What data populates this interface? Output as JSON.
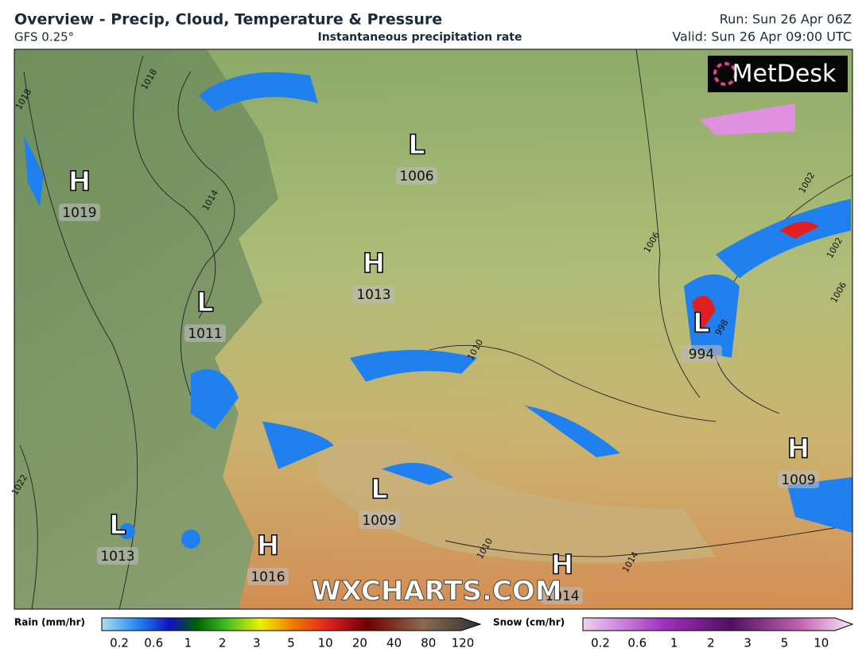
{
  "header": {
    "title": "Overview - Precip, Cloud, Temperature & Pressure",
    "model": "GFS 0.25°",
    "product": "Instantaneous precipitation rate",
    "run": "Run: Sun 26 Apr 06Z",
    "valid": "Valid: Sun 26 Apr 09:00 UTC"
  },
  "map": {
    "logo": "MetDesk",
    "watermark": "WXCHARTS.COM",
    "pressure_centers": [
      {
        "type": "H",
        "value": 1019
      },
      {
        "type": "L",
        "value": 1011
      },
      {
        "type": "H",
        "value": 1013
      },
      {
        "type": "L",
        "value": 1006
      },
      {
        "type": "L",
        "value": 994
      },
      {
        "type": "H",
        "value": 1009
      },
      {
        "type": "L",
        "value": 1009
      },
      {
        "type": "L",
        "value": 1013
      },
      {
        "type": "H",
        "value": 1016
      },
      {
        "type": "H",
        "value": 1014
      }
    ],
    "isobar_labels": [
      1018,
      1018,
      1014,
      1010,
      1006,
      1002,
      1002,
      1006,
      998,
      1022,
      1010,
      1014
    ]
  },
  "legend": {
    "rain": {
      "title": "Rain (mm/hr)",
      "labels": [
        0.2,
        0.6,
        1,
        2,
        3,
        5,
        10,
        20,
        40,
        80,
        120
      ]
    },
    "snow": {
      "title": "Snow (cm/hr)",
      "labels": [
        0.2,
        0.6,
        1,
        2,
        3,
        5,
        10
      ]
    }
  }
}
